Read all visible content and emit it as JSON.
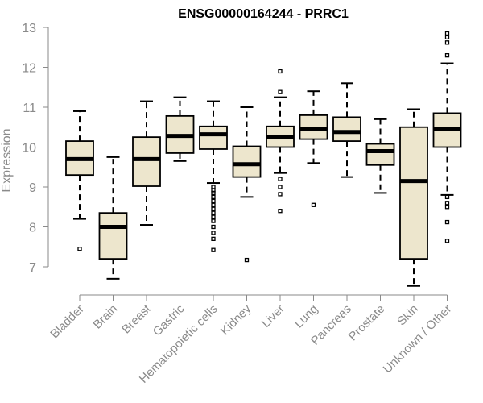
{
  "chart_data": {
    "type": "box",
    "title": "ENSG00000164244 - PRRC1",
    "xlabel": "",
    "ylabel": "Expression",
    "ylim": [
      6.35,
      13.0
    ],
    "yticks": [
      7,
      8,
      9,
      10,
      11,
      12,
      13
    ],
    "colors": {
      "box_fill": "#ede6cd",
      "median": "#000000",
      "axis": "#8a8a8a"
    },
    "categories": [
      "Bladder",
      "Brain",
      "Breast",
      "Gastric",
      "Hematopoietic cells",
      "Kidney",
      "Liver",
      "Lung",
      "Pancreas",
      "Prostate",
      "Skin",
      "Unknown / Other"
    ],
    "boxes": [
      {
        "whislo": 8.2,
        "q1": 9.3,
        "med": 9.7,
        "q3": 10.15,
        "whishi": 10.9,
        "fliers": [
          7.45
        ]
      },
      {
        "whislo": 6.7,
        "q1": 7.2,
        "med": 8.0,
        "q3": 8.35,
        "whishi": 9.75,
        "fliers": []
      },
      {
        "whislo": 8.05,
        "q1": 9.02,
        "med": 9.7,
        "q3": 10.25,
        "whishi": 11.15,
        "fliers": []
      },
      {
        "whislo": 9.65,
        "q1": 9.85,
        "med": 10.28,
        "q3": 10.78,
        "whishi": 11.25,
        "fliers": []
      },
      {
        "whislo": 9.1,
        "q1": 9.95,
        "med": 10.32,
        "q3": 10.52,
        "whishi": 11.15,
        "fliers": [
          9.0,
          8.92,
          8.85,
          8.75,
          8.65,
          8.55,
          8.45,
          8.35,
          8.25,
          8.15,
          8.0,
          7.85,
          7.7,
          7.42
        ]
      },
      {
        "whislo": 8.75,
        "q1": 9.25,
        "med": 9.57,
        "q3": 10.02,
        "whishi": 11.0,
        "fliers": [
          7.17
        ]
      },
      {
        "whislo": 9.35,
        "q1": 10.0,
        "med": 10.25,
        "q3": 10.52,
        "whishi": 11.25,
        "fliers": [
          11.9,
          11.38,
          9.2,
          9.0,
          8.82,
          8.4
        ]
      },
      {
        "whislo": 9.6,
        "q1": 10.2,
        "med": 10.45,
        "q3": 10.8,
        "whishi": 11.4,
        "fliers": [
          8.55
        ]
      },
      {
        "whislo": 9.25,
        "q1": 10.15,
        "med": 10.38,
        "q3": 10.75,
        "whishi": 11.6,
        "fliers": []
      },
      {
        "whislo": 8.85,
        "q1": 9.55,
        "med": 9.9,
        "q3": 10.08,
        "whishi": 10.7,
        "fliers": []
      },
      {
        "whislo": 6.52,
        "q1": 7.2,
        "med": 9.15,
        "q3": 10.5,
        "whishi": 10.95,
        "fliers": []
      },
      {
        "whislo": 8.8,
        "q1": 10.0,
        "med": 10.45,
        "q3": 10.85,
        "whishi": 12.1,
        "fliers": [
          12.85,
          12.75,
          12.62,
          12.3,
          8.75,
          8.6,
          8.5,
          8.12,
          7.65
        ]
      }
    ]
  }
}
